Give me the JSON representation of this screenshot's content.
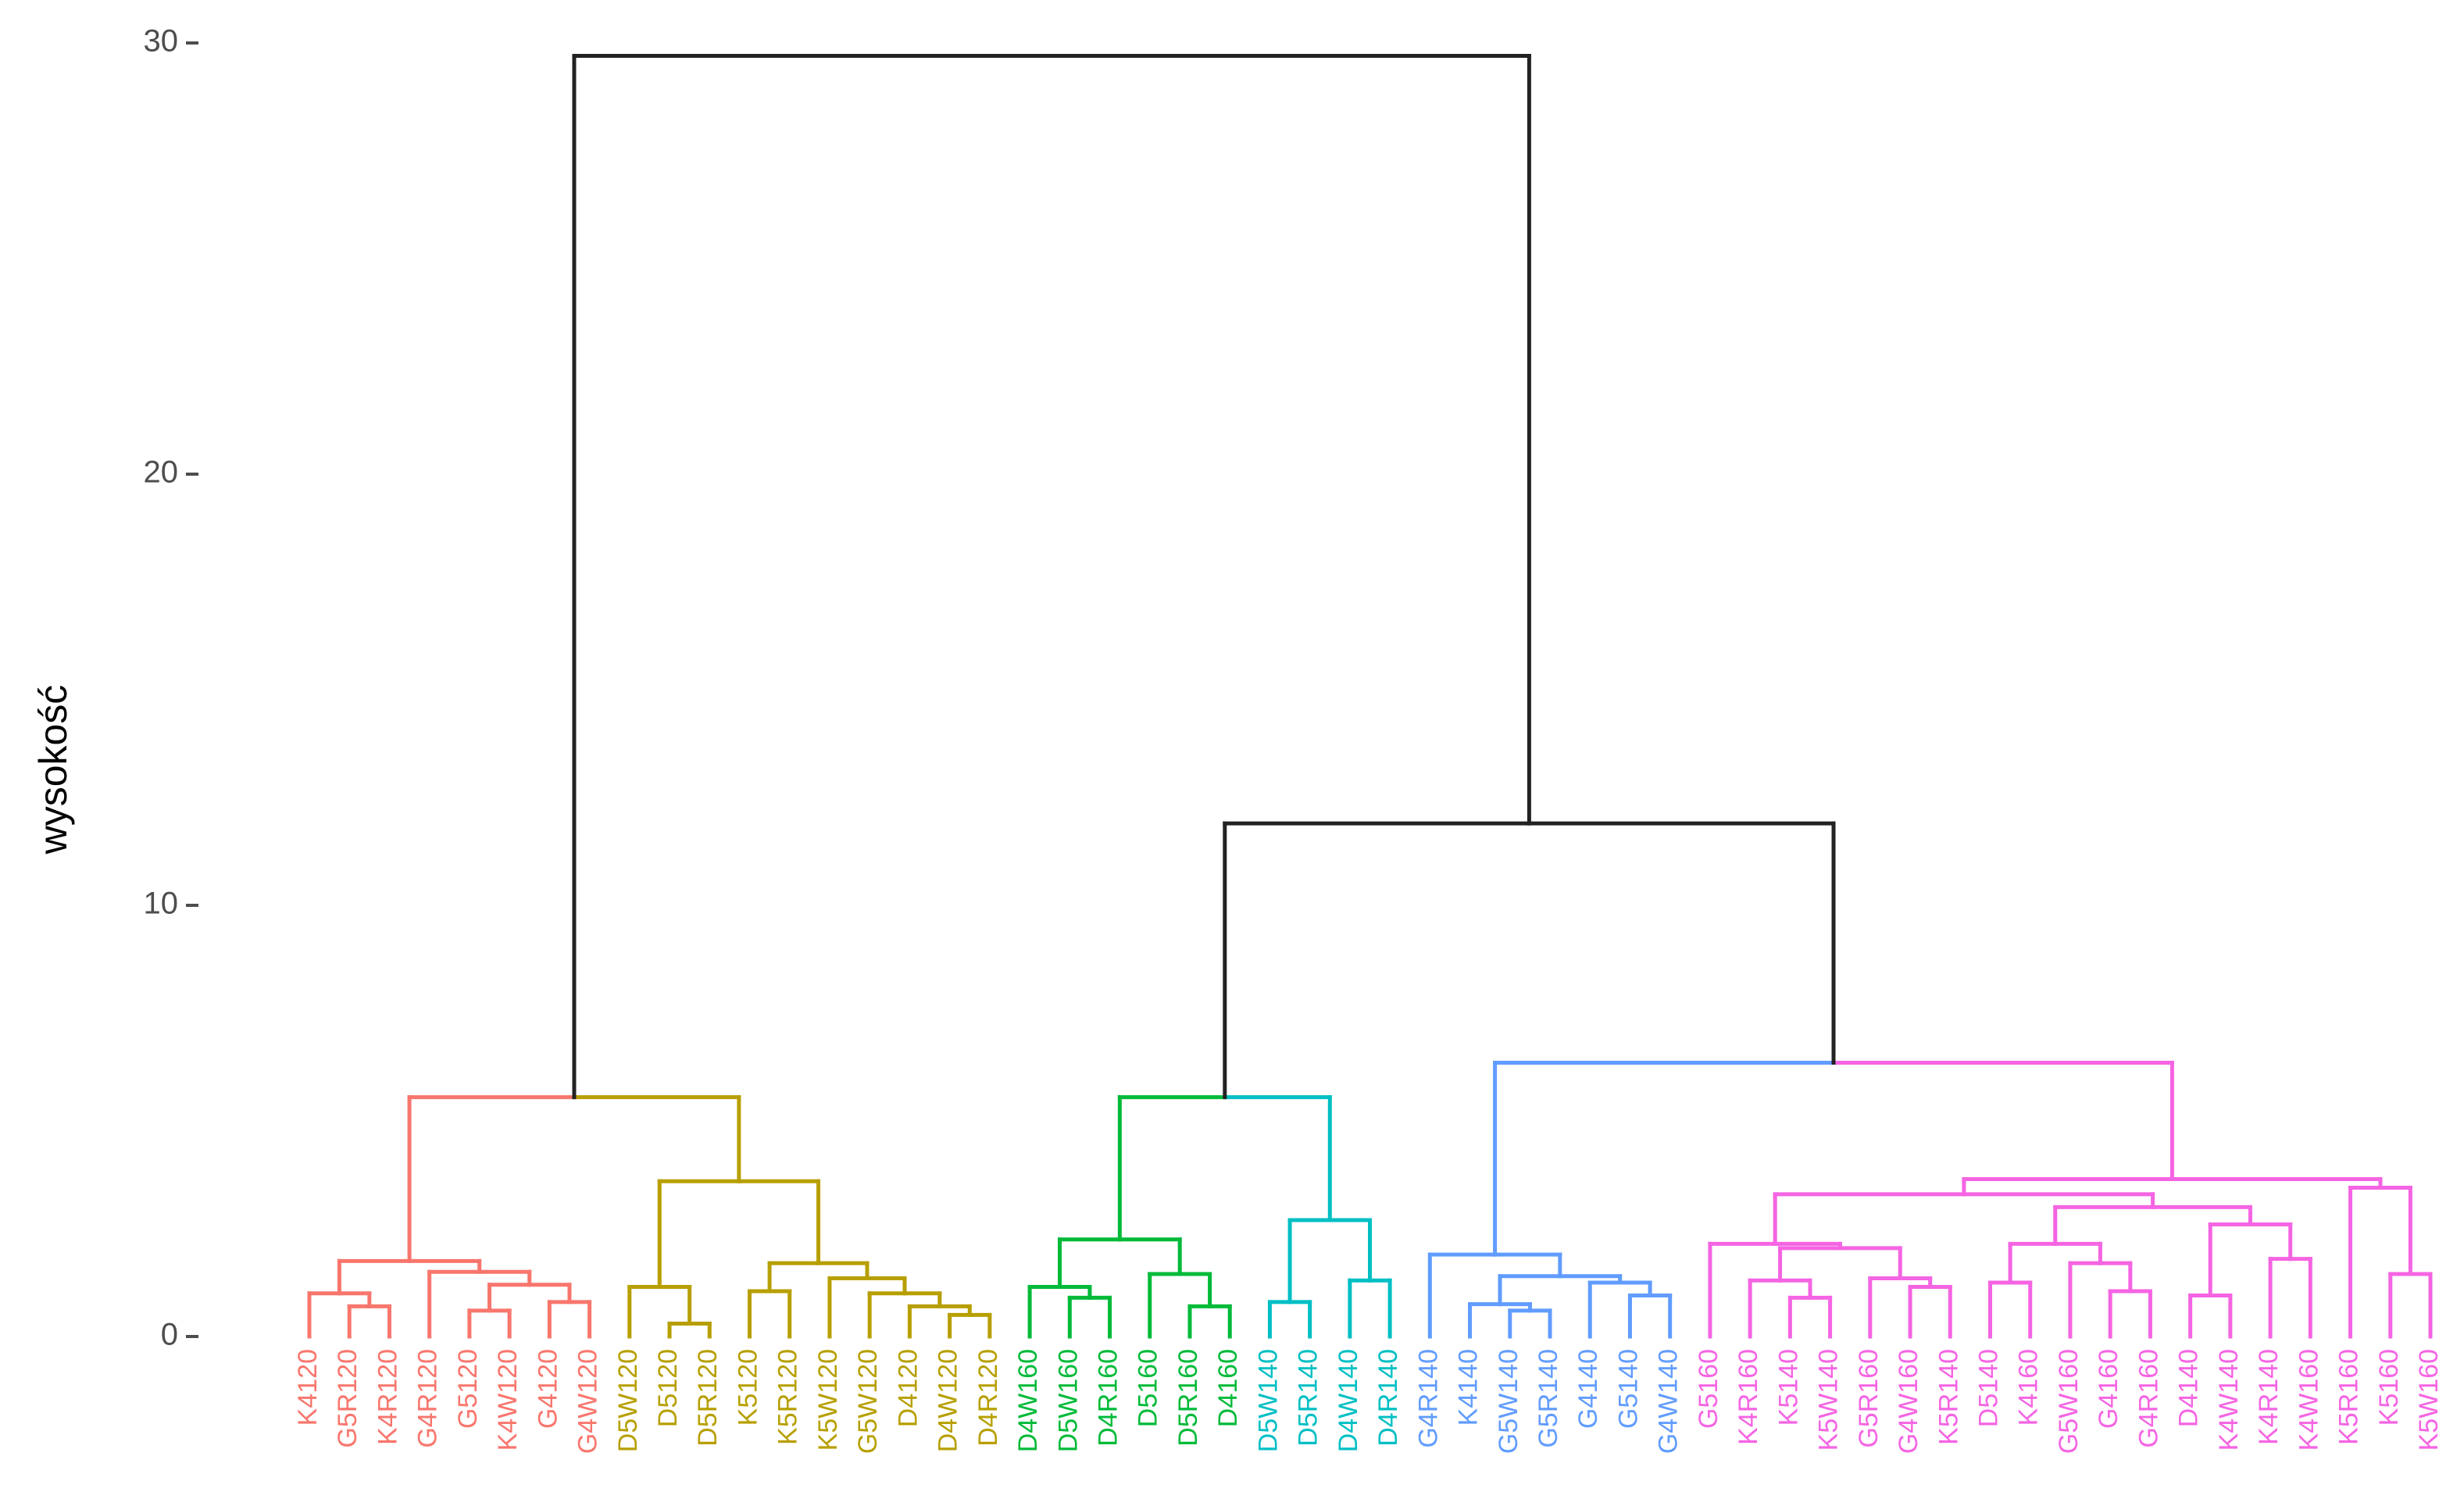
{
  "chart_data": {
    "type": "dendrogram",
    "ylabel": "wysokość",
    "ylim": [
      0,
      30
    ],
    "yticks": [
      0,
      10,
      20,
      30
    ],
    "tree": {
      "height": 29.7,
      "children": [
        {
          "height": 5.55,
          "children": [
            {
              "height": 1.75,
              "color": "#F8766D",
              "children": [
                {
                  "height": 1.0,
                  "children": [
                    "K4120",
                    {
                      "height": 0.7,
                      "children": [
                        "G5R120",
                        "K4R120"
                      ]
                    }
                  ]
                },
                {
                  "height": 1.5,
                  "children": [
                    "G4R120",
                    {
                      "height": 1.2,
                      "children": [
                        {
                          "height": 0.6,
                          "children": [
                            "G5120",
                            "K4W120"
                          ]
                        },
                        {
                          "height": 0.8,
                          "children": [
                            "G4120",
                            "G4W120"
                          ]
                        }
                      ]
                    }
                  ]
                }
              ]
            },
            {
              "height": 3.6,
              "color": "#B79F00",
              "children": [
                {
                  "height": 1.15,
                  "children": [
                    "D5W120",
                    {
                      "height": 0.3,
                      "children": [
                        "D5120",
                        "D5R120"
                      ]
                    }
                  ]
                },
                {
                  "height": 1.7,
                  "children": [
                    {
                      "height": 1.05,
                      "children": [
                        "K5120",
                        "K5R120"
                      ]
                    },
                    {
                      "height": 1.35,
                      "children": [
                        "K5W120",
                        {
                          "height": 1.0,
                          "children": [
                            "G5W120",
                            {
                              "height": 0.7,
                              "children": [
                                "D4120",
                                {
                                  "height": 0.5,
                                  "children": [
                                    "D4W120",
                                    "D4R120"
                                  ]
                                }
                              ]
                            }
                          ]
                        }
                      ]
                    }
                  ]
                }
              ]
            }
          ]
        },
        {
          "height": 11.9,
          "children": [
            {
              "height": 5.55,
              "children": [
                {
                  "height": 2.25,
                  "color": "#00BA38",
                  "children": [
                    {
                      "height": 1.15,
                      "children": [
                        "D4W160",
                        {
                          "height": 0.9,
                          "children": [
                            "D5W160",
                            "D4R160"
                          ]
                        }
                      ]
                    },
                    {
                      "height": 1.45,
                      "children": [
                        "D5160",
                        {
                          "height": 0.7,
                          "children": [
                            "D5R160",
                            "D4160"
                          ]
                        }
                      ]
                    }
                  ]
                },
                {
                  "height": 2.7,
                  "color": "#00BFC4",
                  "children": [
                    {
                      "height": 0.8,
                      "children": [
                        "D5W140",
                        "D5R140"
                      ]
                    },
                    {
                      "height": 1.3,
                      "children": [
                        "D4W140",
                        "D4R140"
                      ]
                    }
                  ]
                }
              ]
            },
            {
              "height": 6.35,
              "children": [
                {
                  "height": 1.9,
                  "color": "#619CFF",
                  "children": [
                    "G4R140",
                    {
                      "height": 1.4,
                      "children": [
                        {
                          "height": 0.75,
                          "children": [
                            "K4140",
                            {
                              "height": 0.6,
                              "children": [
                                "G5W140",
                                "G5R140"
                              ]
                            }
                          ]
                        },
                        {
                          "height": 1.25,
                          "children": [
                            "G4140",
                            {
                              "height": 0.95,
                              "children": [
                                "G5140",
                                "G4W140"
                              ]
                            }
                          ]
                        }
                      ]
                    }
                  ]
                },
                {
                  "height": 3.65,
                  "color": "#F564E3",
                  "children": [
                    {
                      "height": 3.3,
                      "children": [
                        {
                          "height": 2.15,
                          "children": [
                            "G5160",
                            {
                              "height": 2.05,
                              "children": [
                                {
                                  "height": 1.3,
                                  "children": [
                                    "K4R160",
                                    {
                                      "height": 0.9,
                                      "children": [
                                        "K5140",
                                        "K5W140"
                                      ]
                                    }
                                  ]
                                },
                                {
                                  "height": 1.35,
                                  "children": [
                                    "G5R160",
                                    {
                                      "height": 1.15,
                                      "children": [
                                        "G4W160",
                                        "K5R140"
                                      ]
                                    }
                                  ]
                                }
                              ]
                            }
                          ]
                        },
                        {
                          "height": 3.0,
                          "children": [
                            {
                              "height": 2.15,
                              "children": [
                                {
                                  "height": 1.25,
                                  "children": [
                                    "D5140",
                                    "K4160"
                                  ]
                                },
                                {
                                  "height": 1.7,
                                  "children": [
                                    "G5W160",
                                    {
                                      "height": 1.05,
                                      "children": [
                                        "G4160",
                                        "G4R160"
                                      ]
                                    }
                                  ]
                                }
                              ]
                            },
                            {
                              "height": 2.6,
                              "children": [
                                {
                                  "height": 0.95,
                                  "children": [
                                    "D4140",
                                    "K4W140"
                                  ]
                                },
                                {
                                  "height": 1.8,
                                  "children": [
                                    "K4R140",
                                    "K4W160"
                                  ]
                                }
                              ]
                            }
                          ]
                        }
                      ]
                    },
                    {
                      "height": 3.45,
                      "children": [
                        "K5R160",
                        {
                          "height": 1.45,
                          "children": [
                            "K5160",
                            "K5W160"
                          ]
                        }
                      ]
                    }
                  ]
                }
              ]
            }
          ]
        }
      ]
    }
  }
}
